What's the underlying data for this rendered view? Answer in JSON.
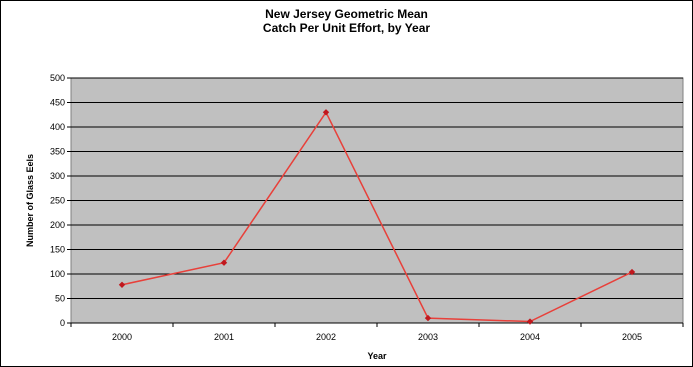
{
  "chart_data": {
    "type": "line",
    "title_lines": [
      "New Jersey Geometric Mean",
      "Catch Per Unit Effort, by Year"
    ],
    "xlabel": "Year",
    "ylabel": "Number of Glass Eels",
    "categories": [
      "2000",
      "2001",
      "2002",
      "2003",
      "2004",
      "2005"
    ],
    "series": [
      {
        "values": [
          78,
          123,
          430,
          10,
          3,
          104
        ]
      }
    ],
    "ylim": [
      0,
      500
    ],
    "yticks": [
      "0",
      "50",
      "100",
      "150",
      "200",
      "250",
      "300",
      "350",
      "400",
      "450",
      "500"
    ],
    "grid": true,
    "legend": "none",
    "colors": {
      "line": "#e8403a",
      "marker": "#c0181e",
      "plot_background": "#c0c0c0",
      "gridline": "#000000"
    }
  }
}
